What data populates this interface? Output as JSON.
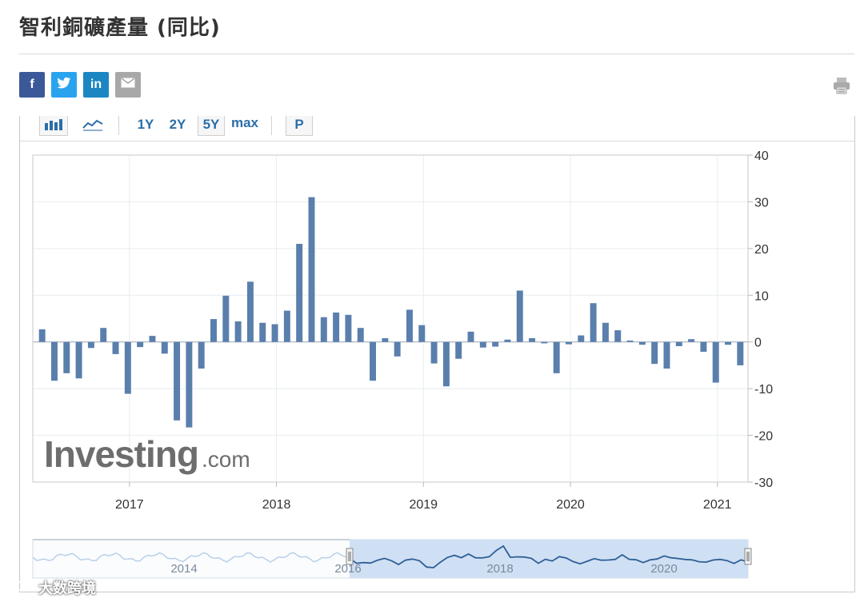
{
  "page": {
    "title": "智利銅礦產量 (同比)"
  },
  "share": {
    "facebook": "f",
    "twitter": "t",
    "linkedin": "in",
    "email": "✉",
    "colors": {
      "facebook": "#3b5998",
      "twitter": "#2aa3ef",
      "linkedin": "#1b86c2",
      "email": "#a8a8a8"
    }
  },
  "toolbar": {
    "bar_icon": "bar-chart-icon",
    "line_icon": "area-chart-icon",
    "ranges": [
      "1Y",
      "2Y",
      "5Y",
      "max"
    ],
    "selected_range": "5Y",
    "p_label": "P"
  },
  "branding": {
    "logo_main": "Investing",
    "logo_suffix": ".com"
  },
  "navigator": {
    "labels": [
      "2014",
      "2016",
      "2018",
      "2020"
    ]
  },
  "watermark": {
    "text": "大数跨境"
  },
  "colors": {
    "bar": "#5a7fad",
    "grid": "#e8edf2",
    "nav_fill": "#cfe0f5",
    "nav_line": "#2f5f95"
  },
  "chart_data": {
    "type": "bar",
    "title": "智利銅礦產量 (同比)",
    "xlabel": "",
    "ylabel": "",
    "ylim": [
      -30,
      40
    ],
    "yticks": [
      40,
      30,
      20,
      10,
      0,
      -10,
      -20,
      -30
    ],
    "xticks": [
      "2017",
      "2018",
      "2019",
      "2020",
      "2021"
    ],
    "grid": true,
    "series": [
      {
        "values": [
          2.7,
          -8.3,
          -6.7,
          -7.8,
          -1.3,
          3.0,
          -2.6,
          -11.1,
          -1.1,
          1.3,
          -2.5,
          -16.8,
          -18.3,
          -5.7,
          4.9,
          9.9,
          4.4,
          12.9,
          4.1,
          3.8,
          6.7,
          21.0,
          31.0,
          5.3,
          6.3,
          5.8,
          3.0,
          -8.3,
          0.8,
          -3.1,
          6.9,
          3.6,
          -4.6,
          -9.5,
          -3.6,
          2.2,
          -1.2,
          -1.0,
          0.5,
          11.0,
          0.8,
          -0.3,
          -6.7,
          -0.5,
          1.4,
          8.3,
          4.1,
          2.5,
          0.3,
          -0.6,
          -4.7,
          -5.7,
          -0.9,
          0.6,
          -2.1,
          -8.7,
          -0.6,
          -5.0
        ]
      }
    ]
  }
}
